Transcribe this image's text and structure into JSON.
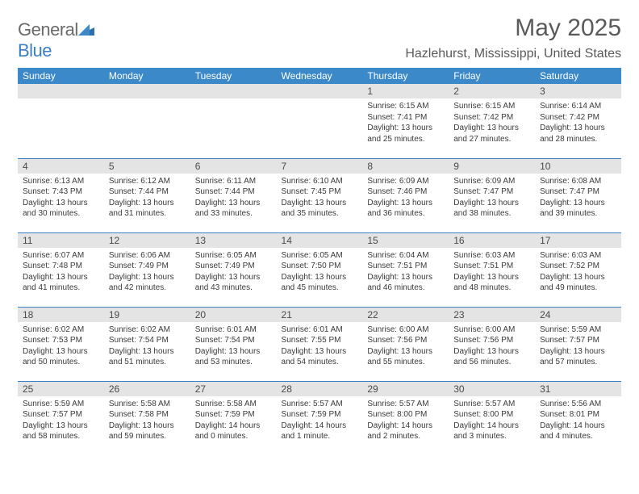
{
  "brand": {
    "part1": "General",
    "part2": "Blue"
  },
  "title": "May 2025",
  "location": "Hazlehurst, Mississippi, United States",
  "colors": {
    "header_bg": "#3b89c9",
    "border": "#3b7fc4",
    "daynum_bg": "#e4e4e4"
  },
  "weekdays": [
    "Sunday",
    "Monday",
    "Tuesday",
    "Wednesday",
    "Thursday",
    "Friday",
    "Saturday"
  ],
  "weeks": [
    [
      null,
      null,
      null,
      null,
      {
        "n": "1",
        "sr": "Sunrise: 6:15 AM",
        "ss": "Sunset: 7:41 PM",
        "d1": "Daylight: 13 hours",
        "d2": "and 25 minutes."
      },
      {
        "n": "2",
        "sr": "Sunrise: 6:15 AM",
        "ss": "Sunset: 7:42 PM",
        "d1": "Daylight: 13 hours",
        "d2": "and 27 minutes."
      },
      {
        "n": "3",
        "sr": "Sunrise: 6:14 AM",
        "ss": "Sunset: 7:42 PM",
        "d1": "Daylight: 13 hours",
        "d2": "and 28 minutes."
      }
    ],
    [
      {
        "n": "4",
        "sr": "Sunrise: 6:13 AM",
        "ss": "Sunset: 7:43 PM",
        "d1": "Daylight: 13 hours",
        "d2": "and 30 minutes."
      },
      {
        "n": "5",
        "sr": "Sunrise: 6:12 AM",
        "ss": "Sunset: 7:44 PM",
        "d1": "Daylight: 13 hours",
        "d2": "and 31 minutes."
      },
      {
        "n": "6",
        "sr": "Sunrise: 6:11 AM",
        "ss": "Sunset: 7:44 PM",
        "d1": "Daylight: 13 hours",
        "d2": "and 33 minutes."
      },
      {
        "n": "7",
        "sr": "Sunrise: 6:10 AM",
        "ss": "Sunset: 7:45 PM",
        "d1": "Daylight: 13 hours",
        "d2": "and 35 minutes."
      },
      {
        "n": "8",
        "sr": "Sunrise: 6:09 AM",
        "ss": "Sunset: 7:46 PM",
        "d1": "Daylight: 13 hours",
        "d2": "and 36 minutes."
      },
      {
        "n": "9",
        "sr": "Sunrise: 6:09 AM",
        "ss": "Sunset: 7:47 PM",
        "d1": "Daylight: 13 hours",
        "d2": "and 38 minutes."
      },
      {
        "n": "10",
        "sr": "Sunrise: 6:08 AM",
        "ss": "Sunset: 7:47 PM",
        "d1": "Daylight: 13 hours",
        "d2": "and 39 minutes."
      }
    ],
    [
      {
        "n": "11",
        "sr": "Sunrise: 6:07 AM",
        "ss": "Sunset: 7:48 PM",
        "d1": "Daylight: 13 hours",
        "d2": "and 41 minutes."
      },
      {
        "n": "12",
        "sr": "Sunrise: 6:06 AM",
        "ss": "Sunset: 7:49 PM",
        "d1": "Daylight: 13 hours",
        "d2": "and 42 minutes."
      },
      {
        "n": "13",
        "sr": "Sunrise: 6:05 AM",
        "ss": "Sunset: 7:49 PM",
        "d1": "Daylight: 13 hours",
        "d2": "and 43 minutes."
      },
      {
        "n": "14",
        "sr": "Sunrise: 6:05 AM",
        "ss": "Sunset: 7:50 PM",
        "d1": "Daylight: 13 hours",
        "d2": "and 45 minutes."
      },
      {
        "n": "15",
        "sr": "Sunrise: 6:04 AM",
        "ss": "Sunset: 7:51 PM",
        "d1": "Daylight: 13 hours",
        "d2": "and 46 minutes."
      },
      {
        "n": "16",
        "sr": "Sunrise: 6:03 AM",
        "ss": "Sunset: 7:51 PM",
        "d1": "Daylight: 13 hours",
        "d2": "and 48 minutes."
      },
      {
        "n": "17",
        "sr": "Sunrise: 6:03 AM",
        "ss": "Sunset: 7:52 PM",
        "d1": "Daylight: 13 hours",
        "d2": "and 49 minutes."
      }
    ],
    [
      {
        "n": "18",
        "sr": "Sunrise: 6:02 AM",
        "ss": "Sunset: 7:53 PM",
        "d1": "Daylight: 13 hours",
        "d2": "and 50 minutes."
      },
      {
        "n": "19",
        "sr": "Sunrise: 6:02 AM",
        "ss": "Sunset: 7:54 PM",
        "d1": "Daylight: 13 hours",
        "d2": "and 51 minutes."
      },
      {
        "n": "20",
        "sr": "Sunrise: 6:01 AM",
        "ss": "Sunset: 7:54 PM",
        "d1": "Daylight: 13 hours",
        "d2": "and 53 minutes."
      },
      {
        "n": "21",
        "sr": "Sunrise: 6:01 AM",
        "ss": "Sunset: 7:55 PM",
        "d1": "Daylight: 13 hours",
        "d2": "and 54 minutes."
      },
      {
        "n": "22",
        "sr": "Sunrise: 6:00 AM",
        "ss": "Sunset: 7:56 PM",
        "d1": "Daylight: 13 hours",
        "d2": "and 55 minutes."
      },
      {
        "n": "23",
        "sr": "Sunrise: 6:00 AM",
        "ss": "Sunset: 7:56 PM",
        "d1": "Daylight: 13 hours",
        "d2": "and 56 minutes."
      },
      {
        "n": "24",
        "sr": "Sunrise: 5:59 AM",
        "ss": "Sunset: 7:57 PM",
        "d1": "Daylight: 13 hours",
        "d2": "and 57 minutes."
      }
    ],
    [
      {
        "n": "25",
        "sr": "Sunrise: 5:59 AM",
        "ss": "Sunset: 7:57 PM",
        "d1": "Daylight: 13 hours",
        "d2": "and 58 minutes."
      },
      {
        "n": "26",
        "sr": "Sunrise: 5:58 AM",
        "ss": "Sunset: 7:58 PM",
        "d1": "Daylight: 13 hours",
        "d2": "and 59 minutes."
      },
      {
        "n": "27",
        "sr": "Sunrise: 5:58 AM",
        "ss": "Sunset: 7:59 PM",
        "d1": "Daylight: 14 hours",
        "d2": "and 0 minutes."
      },
      {
        "n": "28",
        "sr": "Sunrise: 5:57 AM",
        "ss": "Sunset: 7:59 PM",
        "d1": "Daylight: 14 hours",
        "d2": "and 1 minute."
      },
      {
        "n": "29",
        "sr": "Sunrise: 5:57 AM",
        "ss": "Sunset: 8:00 PM",
        "d1": "Daylight: 14 hours",
        "d2": "and 2 minutes."
      },
      {
        "n": "30",
        "sr": "Sunrise: 5:57 AM",
        "ss": "Sunset: 8:00 PM",
        "d1": "Daylight: 14 hours",
        "d2": "and 3 minutes."
      },
      {
        "n": "31",
        "sr": "Sunrise: 5:56 AM",
        "ss": "Sunset: 8:01 PM",
        "d1": "Daylight: 14 hours",
        "d2": "and 4 minutes."
      }
    ]
  ]
}
